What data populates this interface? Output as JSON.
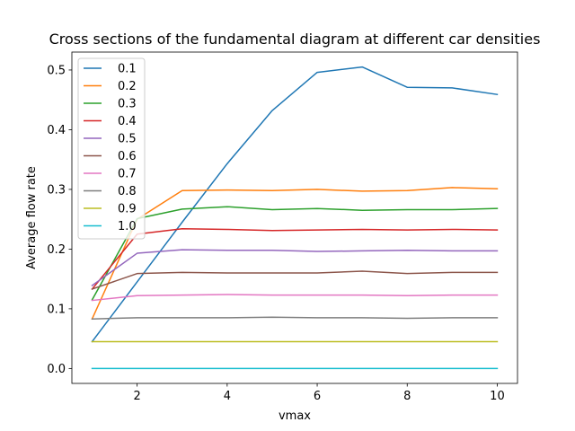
{
  "chart_data": {
    "type": "line",
    "title": "Cross sections of the fundamental diagram at different car densities",
    "xlabel": "vmax",
    "ylabel": "Average flow rate",
    "xlim": [
      0.55,
      10.45
    ],
    "ylim": [
      -0.025,
      0.53
    ],
    "xticks": [
      2,
      4,
      6,
      8,
      10
    ],
    "yticks": [
      0.0,
      0.1,
      0.2,
      0.3,
      0.4,
      0.5
    ],
    "ytick_labels": [
      "0.0",
      "0.1",
      "0.2",
      "0.3",
      "0.4",
      "0.5"
    ],
    "grid": false,
    "legend_position": "upper-left",
    "x": [
      1,
      2,
      3,
      4,
      5,
      6,
      7,
      8,
      9,
      10
    ],
    "series": [
      {
        "name": "0.1",
        "color": "#1f77b4",
        "values": [
          0.045,
          0.145,
          0.245,
          0.343,
          0.432,
          0.496,
          0.505,
          0.471,
          0.47,
          0.459
        ]
      },
      {
        "name": "0.2",
        "color": "#ff7f0e",
        "values": [
          0.083,
          0.25,
          0.298,
          0.299,
          0.298,
          0.3,
          0.297,
          0.298,
          0.303,
          0.301
        ]
      },
      {
        "name": "0.3",
        "color": "#2ca02c",
        "values": [
          0.115,
          0.251,
          0.267,
          0.271,
          0.266,
          0.268,
          0.265,
          0.266,
          0.266,
          0.268
        ]
      },
      {
        "name": "0.4",
        "color": "#d62728",
        "values": [
          0.133,
          0.225,
          0.234,
          0.233,
          0.231,
          0.232,
          0.233,
          0.232,
          0.233,
          0.232
        ]
      },
      {
        "name": "0.5",
        "color": "#9467bd",
        "values": [
          0.139,
          0.193,
          0.199,
          0.198,
          0.198,
          0.196,
          0.197,
          0.198,
          0.197,
          0.197
        ]
      },
      {
        "name": "0.6",
        "color": "#8c564b",
        "values": [
          0.133,
          0.159,
          0.161,
          0.16,
          0.16,
          0.16,
          0.163,
          0.159,
          0.161,
          0.161
        ]
      },
      {
        "name": "0.7",
        "color": "#e377c2",
        "values": [
          0.114,
          0.122,
          0.123,
          0.124,
          0.123,
          0.123,
          0.123,
          0.122,
          0.123,
          0.123
        ]
      },
      {
        "name": "0.8",
        "color": "#7f7f7f",
        "values": [
          0.083,
          0.085,
          0.085,
          0.085,
          0.086,
          0.085,
          0.085,
          0.084,
          0.085,
          0.085
        ]
      },
      {
        "name": "0.9",
        "color": "#bcbd22",
        "values": [
          0.045,
          0.045,
          0.045,
          0.045,
          0.045,
          0.045,
          0.045,
          0.045,
          0.045,
          0.045
        ]
      },
      {
        "name": "1.0",
        "color": "#17becf",
        "values": [
          0.0,
          0.0,
          0.0,
          0.0,
          0.0,
          0.0,
          0.0,
          0.0,
          0.0,
          0.0
        ]
      }
    ]
  }
}
